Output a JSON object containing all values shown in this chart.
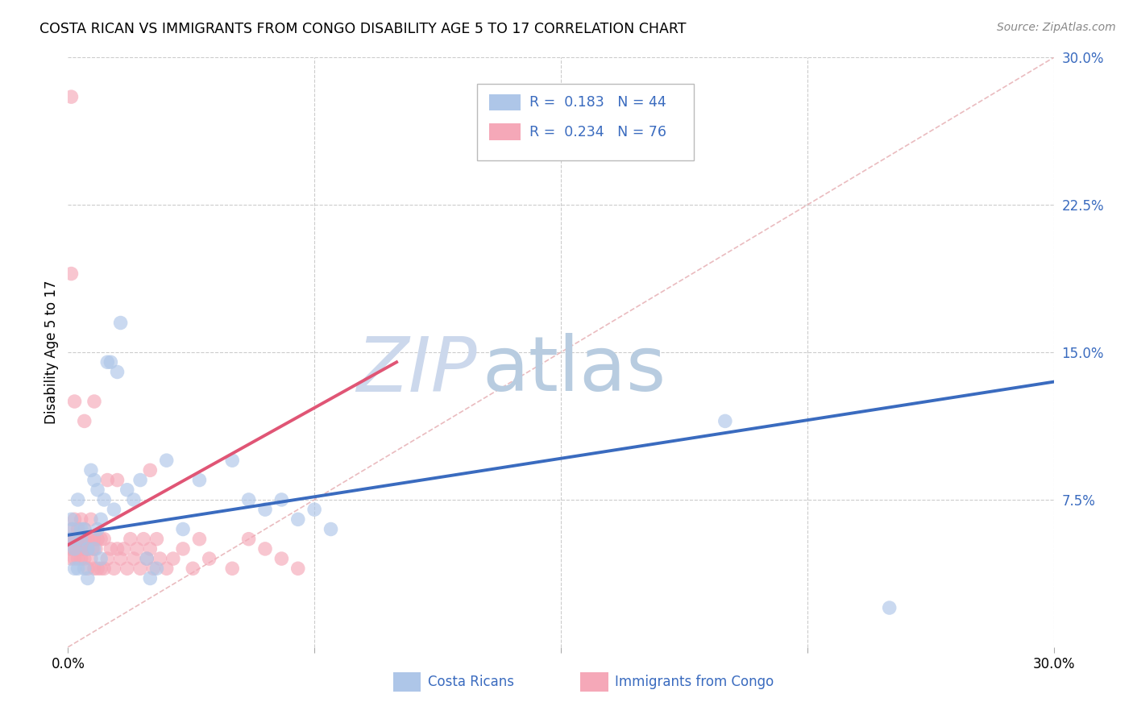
{
  "title": "COSTA RICAN VS IMMIGRANTS FROM CONGO DISABILITY AGE 5 TO 17 CORRELATION CHART",
  "source": "Source: ZipAtlas.com",
  "ylabel": "Disability Age 5 to 17",
  "xlim": [
    0,
    0.3
  ],
  "ylim": [
    0,
    0.3
  ],
  "legend_label1": "Costa Ricans",
  "legend_label2": "Immigrants from Congo",
  "legend_R1": "R =  0.183",
  "legend_N1": "N = 44",
  "legend_R2": "R =  0.234",
  "legend_N2": "N = 76",
  "color_blue": "#aec6e8",
  "color_pink": "#f5a8b8",
  "color_blue_line": "#3a6bbf",
  "color_pink_line": "#e05575",
  "color_diag": "#e8b4b8",
  "background_color": "#ffffff",
  "grid_color": "#cccccc",
  "blue_x": [
    0.0008,
    0.001,
    0.0015,
    0.002,
    0.002,
    0.003,
    0.003,
    0.004,
    0.004,
    0.005,
    0.005,
    0.006,
    0.006,
    0.007,
    0.008,
    0.008,
    0.009,
    0.009,
    0.01,
    0.01,
    0.011,
    0.012,
    0.013,
    0.014,
    0.015,
    0.016,
    0.018,
    0.02,
    0.022,
    0.024,
    0.025,
    0.027,
    0.03,
    0.035,
    0.04,
    0.05,
    0.055,
    0.06,
    0.065,
    0.07,
    0.075,
    0.08,
    0.2,
    0.25
  ],
  "blue_y": [
    0.055,
    0.065,
    0.06,
    0.04,
    0.05,
    0.04,
    0.075,
    0.06,
    0.055,
    0.04,
    0.06,
    0.035,
    0.05,
    0.09,
    0.05,
    0.085,
    0.06,
    0.08,
    0.045,
    0.065,
    0.075,
    0.145,
    0.145,
    0.07,
    0.14,
    0.165,
    0.08,
    0.075,
    0.085,
    0.045,
    0.035,
    0.04,
    0.095,
    0.06,
    0.085,
    0.095,
    0.075,
    0.07,
    0.075,
    0.065,
    0.07,
    0.06,
    0.115,
    0.02
  ],
  "pink_x": [
    0.0005,
    0.0007,
    0.001,
    0.001,
    0.001,
    0.0015,
    0.0015,
    0.002,
    0.002,
    0.002,
    0.0025,
    0.0025,
    0.003,
    0.003,
    0.003,
    0.0035,
    0.004,
    0.004,
    0.004,
    0.0045,
    0.005,
    0.005,
    0.005,
    0.0055,
    0.006,
    0.006,
    0.006,
    0.007,
    0.007,
    0.007,
    0.0075,
    0.008,
    0.008,
    0.0085,
    0.009,
    0.009,
    0.01,
    0.01,
    0.011,
    0.011,
    0.012,
    0.013,
    0.014,
    0.015,
    0.016,
    0.017,
    0.018,
    0.019,
    0.02,
    0.021,
    0.022,
    0.023,
    0.024,
    0.025,
    0.026,
    0.027,
    0.028,
    0.03,
    0.032,
    0.035,
    0.038,
    0.04,
    0.043,
    0.05,
    0.055,
    0.06,
    0.065,
    0.07,
    0.001,
    0.001,
    0.002,
    0.005,
    0.008,
    0.012,
    0.015,
    0.025
  ],
  "pink_y": [
    0.05,
    0.055,
    0.045,
    0.06,
    0.055,
    0.05,
    0.055,
    0.045,
    0.055,
    0.065,
    0.05,
    0.055,
    0.045,
    0.055,
    0.06,
    0.05,
    0.045,
    0.055,
    0.065,
    0.05,
    0.045,
    0.055,
    0.06,
    0.05,
    0.04,
    0.05,
    0.055,
    0.045,
    0.055,
    0.065,
    0.05,
    0.04,
    0.055,
    0.05,
    0.04,
    0.055,
    0.04,
    0.055,
    0.04,
    0.055,
    0.045,
    0.05,
    0.04,
    0.05,
    0.045,
    0.05,
    0.04,
    0.055,
    0.045,
    0.05,
    0.04,
    0.055,
    0.045,
    0.05,
    0.04,
    0.055,
    0.045,
    0.04,
    0.045,
    0.05,
    0.04,
    0.055,
    0.045,
    0.04,
    0.055,
    0.05,
    0.045,
    0.04,
    0.28,
    0.19,
    0.125,
    0.115,
    0.125,
    0.085,
    0.085,
    0.09
  ],
  "blue_line_x": [
    0.0,
    0.3
  ],
  "blue_line_y": [
    0.057,
    0.135
  ],
  "pink_line_x": [
    0.0,
    0.1
  ],
  "pink_line_y": [
    0.052,
    0.145
  ],
  "watermark_zip": "ZIP",
  "watermark_atlas": "atlas",
  "watermark_color_zip": "#ccd8ec",
  "watermark_color_atlas": "#b8cce0"
}
